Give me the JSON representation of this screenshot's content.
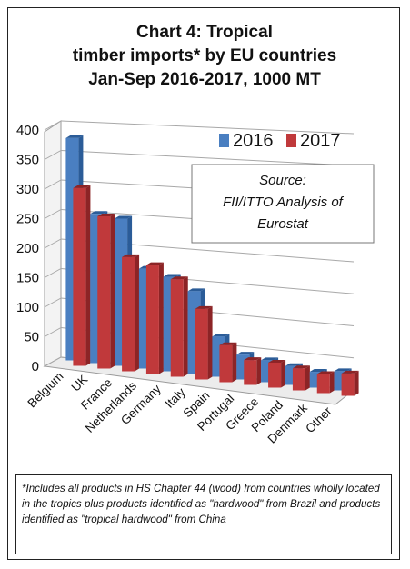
{
  "title_lines": [
    "Chart 4: Tropical",
    "timber imports* by EU countries",
    "Jan-Sep 2016-2017, 1000 MT"
  ],
  "source_lines": [
    "Source:",
    "FII/ITTO Analysis of",
    "Eurostat"
  ],
  "footnote": "*Includes all products in HS Chapter 44 (wood) from countries wholly located in the tropics plus products identified as \"hardwood\" from Brazil and products identified as \"tropical hardwood\" from China",
  "colors": {
    "s2016": "#4a7fc1",
    "s2016_dark": "#2b5c98",
    "s2017": "#c0393b",
    "s2017_dark": "#8c2426"
  },
  "chart_data": {
    "type": "bar",
    "categories": [
      "Belgium",
      "UK",
      "France",
      "Netherlands",
      "Germany",
      "Italy",
      "Spain",
      "Portugal",
      "Greece",
      "Poland",
      "Denmark",
      "Other"
    ],
    "series": [
      {
        "name": "2016",
        "values": [
          375,
          250,
          245,
          165,
          155,
          135,
          65,
          40,
          35,
          30,
          25,
          30
        ]
      },
      {
        "name": "2017",
        "values": [
          300,
          255,
          190,
          180,
          160,
          115,
          60,
          40,
          40,
          35,
          30,
          35
        ]
      }
    ],
    "ylim": [
      0,
      400
    ],
    "yticks": [
      "0",
      "50",
      "100",
      "150",
      "200",
      "250",
      "300",
      "350",
      "400"
    ],
    "ytick_values": [
      0,
      50,
      100,
      150,
      200,
      250,
      300,
      350,
      400
    ],
    "grid": true,
    "legend_position": "top-right"
  }
}
